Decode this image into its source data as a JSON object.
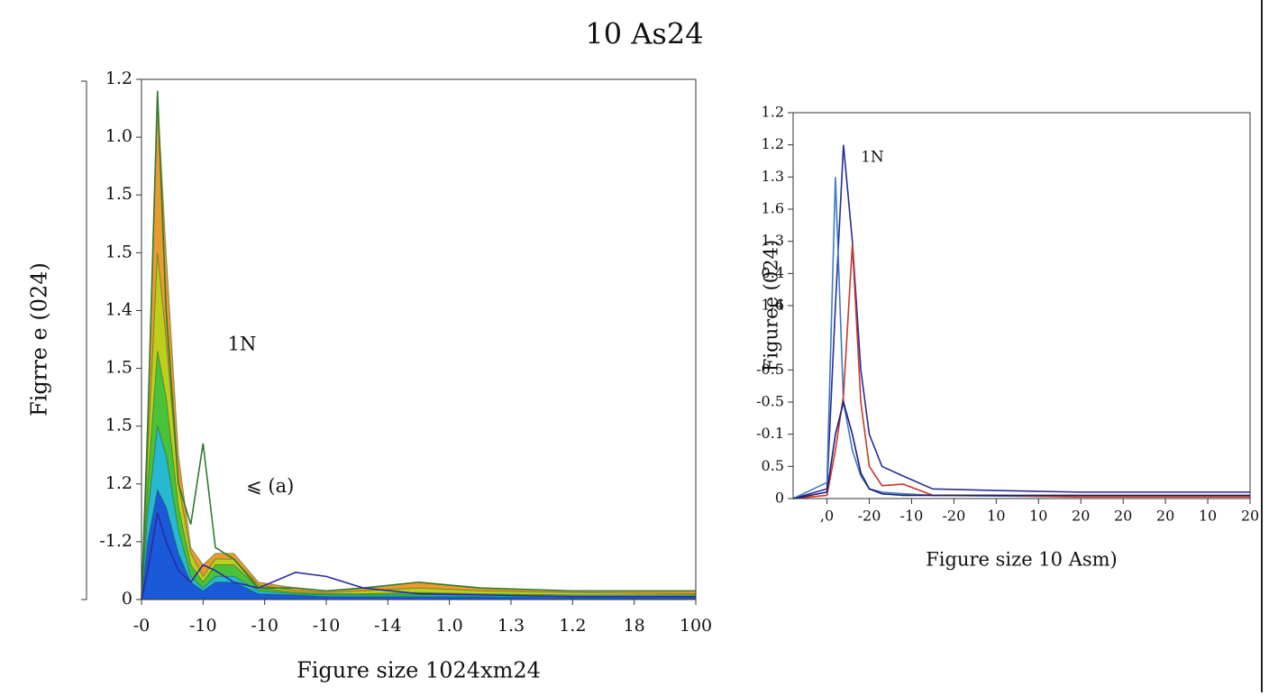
{
  "chart_data": [
    {
      "type": "line",
      "title": "10 As24",
      "xlabel": "Figure size 1024xm24",
      "ylabel": "Figrre e (024)",
      "xlim": [
        0,
        9
      ],
      "ylim": [
        0,
        9
      ],
      "xticks": [
        {
          "value": 0,
          "label": "-0"
        },
        {
          "value": 1,
          "label": "-10"
        },
        {
          "value": 2,
          "label": "-10"
        },
        {
          "value": 3,
          "label": "-10"
        },
        {
          "value": 4,
          "label": "-14"
        },
        {
          "value": 5,
          "label": "1.0"
        },
        {
          "value": 6,
          "label": "1.3"
        },
        {
          "value": 7,
          "label": "1.2"
        },
        {
          "value": 8,
          "label": "18"
        },
        {
          "value": 9,
          "label": "100"
        }
      ],
      "yticks": [
        0,
        {
          "value": 1,
          "label": "-1.2"
        },
        {
          "value": 2,
          "label": "1.2"
        },
        {
          "value": 3,
          "label": "1.5"
        },
        {
          "value": 4,
          "label": "1.5"
        },
        {
          "value": 5,
          "label": "1.4"
        },
        {
          "value": 6,
          "label": "1.5"
        },
        {
          "value": 7,
          "label": "1.5"
        },
        {
          "value": 8,
          "label": "1.0"
        },
        {
          "value": 9,
          "label": "1.2"
        }
      ],
      "annotations": [
        {
          "text": "1N",
          "x": 1.4,
          "y": 4.4
        },
        {
          "text": "⩽ (a)",
          "x": 1.7,
          "y": 1.94
        }
      ],
      "x": [
        0,
        0.1,
        0.26,
        0.4,
        0.6,
        0.8,
        1.0,
        1.2,
        1.5,
        1.9,
        2.5,
        3.0,
        3.6,
        4.5,
        5.5,
        7,
        9
      ],
      "series": [
        {
          "kind": "area",
          "color": "#e8901a",
          "values": [
            0,
            3,
            8.7,
            6,
            2.5,
            0.9,
            0.6,
            0.8,
            0.8,
            0.3,
            0.2,
            0.15,
            0.2,
            0.3,
            0.2,
            0.15,
            0.15
          ]
        },
        {
          "kind": "area",
          "color": "#b8d41c",
          "values": [
            0,
            2.5,
            6.0,
            4.5,
            2.0,
            0.8,
            0.4,
            0.7,
            0.7,
            0.25,
            0.15,
            0.12,
            0.15,
            0.2,
            0.15,
            0.12,
            0.1
          ]
        },
        {
          "kind": "area",
          "color": "#3cc03c",
          "values": [
            0,
            2,
            4.3,
            3.5,
            1.6,
            0.6,
            0.3,
            0.6,
            0.6,
            0.2,
            0.12,
            0.1,
            0.1,
            0.12,
            0.1,
            0.08,
            0.08
          ]
        },
        {
          "kind": "area",
          "color": "#22b8e0",
          "values": [
            0,
            1.5,
            3.0,
            2.5,
            1.2,
            0.4,
            0.2,
            0.4,
            0.4,
            0.15,
            0.1,
            0.08,
            0.08,
            0.08,
            0.08,
            0.05,
            0.05
          ]
        },
        {
          "kind": "area",
          "color": "#1a4fd8",
          "values": [
            0,
            1,
            1.9,
            1.6,
            0.8,
            0.3,
            0.15,
            0.3,
            0.3,
            0.1,
            0.08,
            0.05,
            0.05,
            0.05,
            0.05,
            0.03,
            0.03
          ]
        },
        {
          "kind": "line",
          "color": "#2f7a2f",
          "values": [
            0,
            3,
            8.8,
            5,
            2,
            1.3,
            2.7,
            0.9,
            0.7,
            0.2,
            0.2,
            0.15,
            0.2,
            0.3,
            0.2,
            0.15,
            0.15
          ]
        },
        {
          "kind": "line",
          "color": "#2a2aa8",
          "values": [
            0,
            0.5,
            1.5,
            1.0,
            0.5,
            0.3,
            0.6,
            0.5,
            0.3,
            0.2,
            0.47,
            0.4,
            0.2,
            0.1,
            0.08,
            0.05,
            0.05
          ]
        }
      ]
    },
    {
      "type": "line",
      "xlabel": "Figure size 10 Asm)",
      "ylabel": "Figuree (024)",
      "xlim": [
        -0.8,
        10
      ],
      "ylim": [
        0,
        12
      ],
      "xticks": [
        {
          "value": 0,
          "label": ",0"
        },
        {
          "value": 1,
          "label": "-20"
        },
        {
          "value": 2,
          "label": "-10"
        },
        {
          "value": 3,
          "label": "-20"
        },
        {
          "value": 4,
          "label": "10"
        },
        {
          "value": 5,
          "label": "10"
        },
        {
          "value": 6,
          "label": "20"
        },
        {
          "value": 7,
          "label": "20"
        },
        {
          "value": 8,
          "label": "20"
        },
        {
          "value": 9,
          "label": "10"
        },
        {
          "value": 10,
          "label": "20"
        }
      ],
      "yticks": [
        0,
        {
          "value": 1,
          "label": "0.5"
        },
        {
          "value": 2,
          "label": "-0.1"
        },
        {
          "value": 3,
          "label": "-0.5"
        },
        {
          "value": 4,
          "label": "-0.5"
        },
        6,
        {
          "value": 6,
          "label": "1.4"
        },
        {
          "value": 7,
          "label": "0.4"
        },
        {
          "value": 8,
          "label": "1.3"
        },
        {
          "value": 9,
          "label": "1.6"
        },
        {
          "value": 10,
          "label": "1.3"
        },
        {
          "value": 11,
          "label": "1.2"
        },
        {
          "value": 12,
          "label": "1.2"
        }
      ],
      "annotations": [
        {
          "text": "1N",
          "x": 0.8,
          "y": 10.6
        }
      ],
      "x": [
        -0.8,
        0,
        0.2,
        0.39,
        0.6,
        0.8,
        1.0,
        1.3,
        1.8,
        2.5,
        4,
        6,
        8,
        10
      ],
      "series": [
        {
          "kind": "line",
          "color": "#2a2a9a",
          "values": [
            0,
            0.3,
            6,
            11,
            8,
            4,
            2,
            1,
            0.7,
            0.3,
            0.25,
            0.2,
            0.2,
            0.2
          ]
        },
        {
          "kind": "line",
          "color": "#3a7ac8",
          "values": [
            0,
            0.5,
            10,
            3,
            1.5,
            0.7,
            0.3,
            0.2,
            0.15,
            0.1,
            0.08,
            0.05,
            0.05,
            0.05
          ]
        },
        {
          "kind": "line",
          "color": "#c83a2a",
          "values": [
            0,
            0.1,
            1.5,
            3.2,
            7.9,
            3,
            1,
            0.4,
            0.45,
            0.1,
            0.1,
            0.05,
            0.05,
            0.05
          ]
        },
        {
          "kind": "line",
          "color": "#1e1e78",
          "values": [
            0,
            0.2,
            2,
            3,
            2,
            0.8,
            0.3,
            0.15,
            0.1,
            0.1,
            0.1,
            0.1,
            0.1,
            0.1
          ]
        }
      ]
    }
  ]
}
